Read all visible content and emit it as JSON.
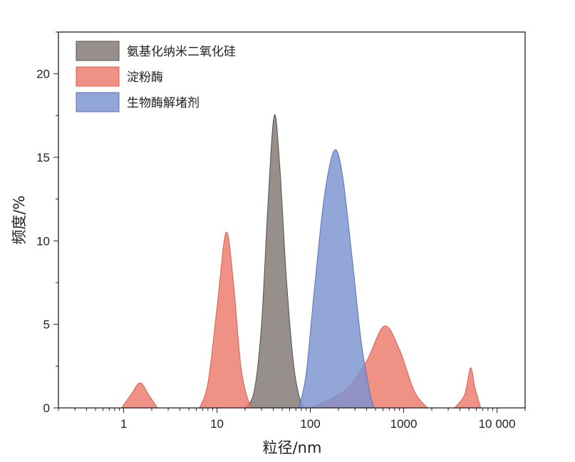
{
  "chart_data": {
    "type": "area",
    "xlabel": "粒径/nm",
    "ylabel": "频度/%",
    "x_scale": "log",
    "xlim": [
      0.2,
      20000
    ],
    "ylim": [
      0,
      22.5
    ],
    "x_ticks": [
      {
        "value": 1,
        "label": "1"
      },
      {
        "value": 10,
        "label": "10"
      },
      {
        "value": 100,
        "label": "100"
      },
      {
        "value": 1000,
        "label": "1000"
      },
      {
        "value": 10000,
        "label": "10 000"
      }
    ],
    "y_ticks": [
      {
        "value": 0,
        "label": "0"
      },
      {
        "value": 5,
        "label": "5"
      },
      {
        "value": 10,
        "label": "10"
      },
      {
        "value": 15,
        "label": "15"
      },
      {
        "value": 20,
        "label": "20"
      }
    ],
    "legend_position": "top-left",
    "grid": false,
    "series": [
      {
        "name": "氨基化纳米二氧化硅",
        "color": "#7f7672",
        "stroke": "#555050",
        "points": [
          [
            20,
            0
          ],
          [
            25,
            1.0
          ],
          [
            30,
            5.0
          ],
          [
            35,
            12.0
          ],
          [
            41,
            17.5
          ],
          [
            47,
            14.5
          ],
          [
            55,
            8.0
          ],
          [
            65,
            3.0
          ],
          [
            75,
            0.8
          ],
          [
            85,
            0
          ]
        ]
      },
      {
        "name": "淀粉酶",
        "color": "#ec7a6a",
        "stroke": "#d9604f",
        "points": [
          [
            0.95,
            0
          ],
          [
            1.2,
            0.8
          ],
          [
            1.5,
            1.5
          ],
          [
            1.85,
            0.8
          ],
          [
            2.3,
            0
          ],
          [
            6.5,
            0
          ],
          [
            8,
            1.5
          ],
          [
            10,
            6.0
          ],
          [
            12.5,
            10.5
          ],
          [
            15,
            7.5
          ],
          [
            18,
            2.5
          ],
          [
            22,
            0.3
          ],
          [
            25,
            0
          ],
          [
            100,
            0
          ],
          [
            160,
            0.5
          ],
          [
            250,
            1.2
          ],
          [
            400,
            2.8
          ],
          [
            620,
            4.9
          ],
          [
            900,
            3.5
          ],
          [
            1300,
            1.0
          ],
          [
            1800,
            0
          ],
          [
            3500,
            0
          ],
          [
            4500,
            0.8
          ],
          [
            5200,
            2.4
          ],
          [
            5800,
            1.2
          ],
          [
            6700,
            0
          ]
        ]
      },
      {
        "name": "生物酶解堵剂",
        "color": "#7a92d0",
        "stroke": "#5872b8",
        "points": [
          [
            75,
            0
          ],
          [
            90,
            2.0
          ],
          [
            110,
            7.0
          ],
          [
            140,
            12.5
          ],
          [
            180,
            15.4
          ],
          [
            220,
            14.0
          ],
          [
            280,
            9.0
          ],
          [
            350,
            4.0
          ],
          [
            430,
            1.0
          ],
          [
            480,
            0
          ]
        ]
      }
    ]
  }
}
